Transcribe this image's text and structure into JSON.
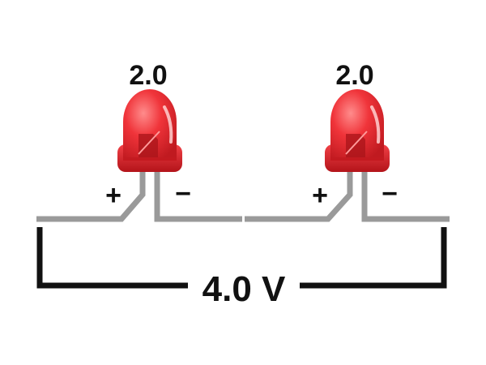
{
  "leds": [
    {
      "voltage": "2.0",
      "plus": "+",
      "minus": "−"
    },
    {
      "voltage": "2.0",
      "plus": "+",
      "minus": "−"
    }
  ],
  "total_voltage": "4.0 V",
  "colors": {
    "led_body": "#e8242b",
    "led_body_dark": "#b8141b",
    "lead": "#9a9a9a",
    "bracket": "#111111"
  },
  "icons": {
    "led": "led-icon"
  }
}
